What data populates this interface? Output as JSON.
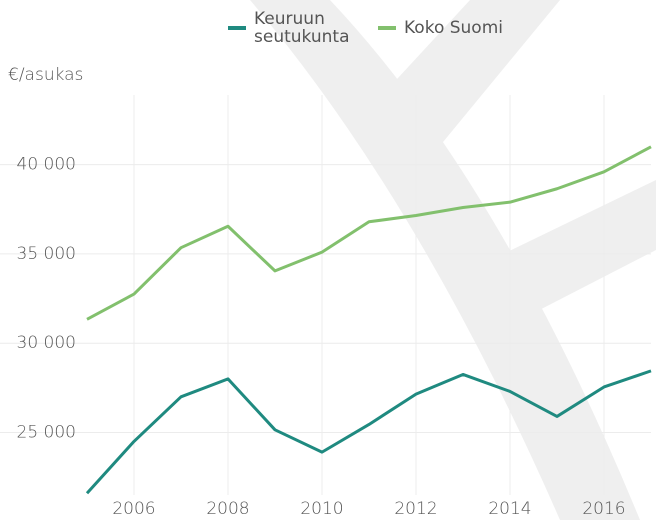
{
  "chart_data": {
    "type": "line",
    "ylabel": "€/asukas",
    "x": [
      2005,
      2006,
      2007,
      2008,
      2009,
      2010,
      2011,
      2012,
      2013,
      2014,
      2015,
      2016,
      2017
    ],
    "series": [
      {
        "name": "Keuruun seutukunta",
        "color": "#1f8a80",
        "values": [
          21600,
          24500,
          27000,
          28000,
          25150,
          23900,
          25450,
          27150,
          28250,
          27300,
          25900,
          27550,
          28450
        ]
      },
      {
        "name": "Koko Suomi",
        "color": "#82c06d",
        "values": [
          31340,
          32750,
          35350,
          36550,
          34050,
          35100,
          36800,
          37150,
          37600,
          37900,
          38650,
          39600,
          41000
        ]
      }
    ],
    "xlim": [
      2005,
      2017
    ],
    "xticks": [
      2006,
      2008,
      2010,
      2012,
      2014,
      2016
    ],
    "ylim": [
      21500,
      43900
    ],
    "yticks": [
      {
        "value": 25000,
        "label": "25 000"
      },
      {
        "value": 30000,
        "label": "30 000"
      },
      {
        "value": 35000,
        "label": "35 000"
      },
      {
        "value": 40000,
        "label": "40 000"
      }
    ],
    "grid": true
  }
}
